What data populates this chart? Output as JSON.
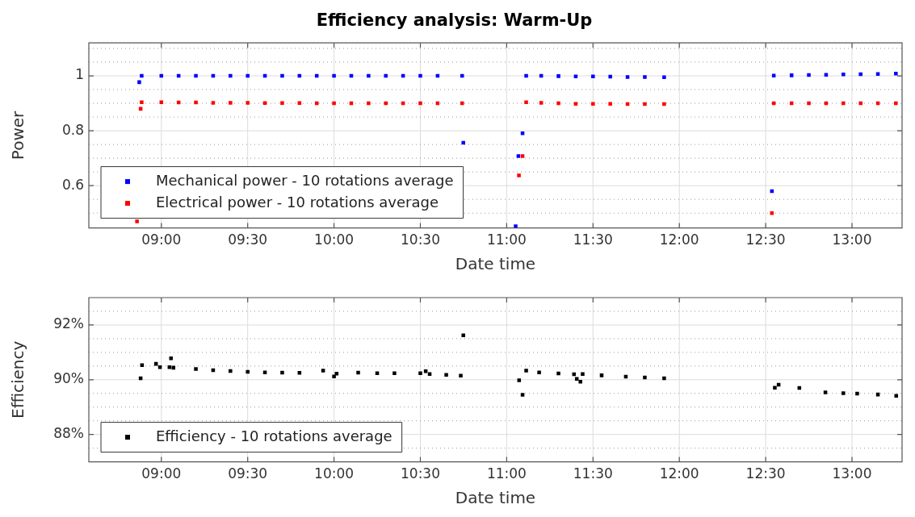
{
  "chart_data": [
    {
      "type": "scatter",
      "title": "Efficiency analysis: Warm-Up",
      "xlabel": "Date time",
      "ylabel": "Power",
      "marker": "square",
      "grid": true,
      "legend": "bottom left",
      "xlim": [
        8.58,
        13.29
      ],
      "xticks": [
        {
          "value": 9,
          "label": "09:00"
        },
        {
          "value": 9.5,
          "label": "09:30"
        },
        {
          "value": 10,
          "label": "10:00"
        },
        {
          "value": 10.5,
          "label": "10:30"
        },
        {
          "value": 11,
          "label": "11:00"
        },
        {
          "value": 11.5,
          "label": "11:30"
        },
        {
          "value": 12,
          "label": "12:00"
        },
        {
          "value": 12.5,
          "label": "12:30"
        },
        {
          "value": 13,
          "label": "13:00"
        }
      ],
      "ylim": [
        0.446,
        1.12
      ],
      "yticks": [
        {
          "value": 0.5,
          "label": null
        },
        {
          "value": 0.55,
          "label": null
        },
        0.6,
        {
          "value": 0.65,
          "label": null
        },
        {
          "value": 0.7,
          "label": null
        },
        {
          "value": 0.75,
          "label": null
        },
        0.8,
        {
          "value": 0.85,
          "label": null
        },
        {
          "value": 0.9,
          "label": null
        },
        {
          "value": 0.95,
          "label": null
        },
        1,
        {
          "value": 1.05,
          "label": null
        },
        {
          "value": 1.1,
          "label": null
        }
      ],
      "series": [
        {
          "name": "Mechanical power - 10 rotations average",
          "color": "#0000ff",
          "x": [
            8.872,
            8.886,
            9.0,
            9.1,
            9.2,
            9.3,
            9.4,
            9.5,
            9.6,
            9.7,
            9.8,
            9.9,
            10.0,
            10.1,
            10.2,
            10.3,
            10.4,
            10.5,
            10.6,
            10.742,
            10.749,
            11.052,
            11.068,
            11.092,
            11.113,
            11.2,
            11.3,
            11.4,
            11.5,
            11.6,
            11.7,
            11.8,
            11.912,
            12.536,
            12.547,
            12.65,
            12.75,
            12.85,
            12.95,
            13.05,
            13.15,
            13.254
          ],
          "values": [
            0.977,
            1.0,
            1.0,
            1.0,
            1.0,
            1.0,
            1.0,
            1.0,
            1.0,
            1.0,
            1.0,
            1.0,
            1.0,
            1.0,
            1.0,
            1.0,
            1.0,
            1.0,
            1.0,
            1.0,
            0.756,
            0.452,
            0.708,
            0.791,
            1.0,
            1.0,
            0.999,
            0.998,
            0.998,
            0.997,
            0.996,
            0.996,
            0.995,
            0.58,
            1.001,
            1.002,
            1.003,
            1.004,
            1.005,
            1.006,
            1.007,
            1.008
          ]
        },
        {
          "name": "Electrical power - 10 rotations average",
          "color": "#ff0000",
          "x": [
            8.859,
            8.88,
            8.886,
            9.0,
            9.1,
            9.2,
            9.3,
            9.4,
            9.5,
            9.6,
            9.7,
            9.8,
            9.9,
            10.0,
            10.1,
            10.2,
            10.3,
            10.4,
            10.5,
            10.6,
            10.742,
            11.071,
            11.092,
            11.113,
            11.2,
            11.3,
            11.4,
            11.5,
            11.6,
            11.7,
            11.8,
            11.912,
            12.536,
            12.547,
            12.65,
            12.75,
            12.85,
            12.95,
            13.05,
            13.15,
            13.254
          ],
          "values": [
            0.47,
            0.88,
            0.904,
            0.904,
            0.903,
            0.903,
            0.902,
            0.902,
            0.902,
            0.901,
            0.901,
            0.901,
            0.9,
            0.9,
            0.9,
            0.9,
            0.9,
            0.9,
            0.9,
            0.9,
            0.9,
            0.637,
            0.708,
            0.904,
            0.902,
            0.9,
            0.898,
            0.898,
            0.898,
            0.897,
            0.897,
            0.897,
            0.5,
            0.9,
            0.9,
            0.9,
            0.9,
            0.9,
            0.9,
            0.9,
            0.9
          ]
        }
      ]
    },
    {
      "type": "scatter",
      "xlabel": "Date time",
      "ylabel": "Efficiency",
      "marker": "square",
      "grid": true,
      "legend": "bottom left",
      "xlim": [
        8.58,
        13.29
      ],
      "xticks": [
        {
          "value": 9,
          "label": "09:00"
        },
        {
          "value": 9.5,
          "label": "09:30"
        },
        {
          "value": 10,
          "label": "10:00"
        },
        {
          "value": 10.5,
          "label": "10:30"
        },
        {
          "value": 11,
          "label": "11:00"
        },
        {
          "value": 11.5,
          "label": "11:30"
        },
        {
          "value": 12,
          "label": "12:00"
        },
        {
          "value": 12.5,
          "label": "12:30"
        },
        {
          "value": 13,
          "label": "13:00"
        }
      ],
      "ylim": [
        87,
        93
      ],
      "yticks": [
        {
          "value": 87.5,
          "label": null
        },
        {
          "value": 88,
          "label": "88%"
        },
        {
          "value": 88.5,
          "label": null
        },
        {
          "value": 89,
          "label": null
        },
        {
          "value": 89.5,
          "label": null
        },
        {
          "value": 90,
          "label": "90%"
        },
        {
          "value": 90.5,
          "label": null
        },
        {
          "value": 91,
          "label": null
        },
        {
          "value": 91.5,
          "label": null
        },
        {
          "value": 92,
          "label": "92%"
        },
        {
          "value": 92.5,
          "label": null
        }
      ],
      "series": [
        {
          "name": "Efficiency - 10 rotations average",
          "color": "#000000",
          "x": [
            8.88,
            8.888,
            8.969,
            8.992,
            9.047,
            9.056,
            9.07,
            9.2,
            9.3,
            9.4,
            9.5,
            9.6,
            9.7,
            9.8,
            9.937,
            10.0,
            10.015,
            10.14,
            10.25,
            10.35,
            10.5,
            10.531,
            10.554,
            10.65,
            10.734,
            10.749,
            11.072,
            11.092,
            11.113,
            11.188,
            11.3,
            11.39,
            11.406,
            11.427,
            11.44,
            11.55,
            11.69,
            11.8,
            11.912,
            12.553,
            12.575,
            12.695,
            12.846,
            12.95,
            13.03,
            13.15,
            13.256
          ],
          "values": [
            90.05,
            90.53,
            90.58,
            90.46,
            90.46,
            90.78,
            90.44,
            90.39,
            90.35,
            90.32,
            90.29,
            90.27,
            90.26,
            90.25,
            90.33,
            90.12,
            90.22,
            90.26,
            90.24,
            90.24,
            90.24,
            90.31,
            90.21,
            90.18,
            90.15,
            91.62,
            89.98,
            89.45,
            90.33,
            90.27,
            90.23,
            90.2,
            90.03,
            89.93,
            90.21,
            90.16,
            90.11,
            90.08,
            90.05,
            89.71,
            89.82,
            89.7,
            89.54,
            89.51,
            89.49,
            89.46,
            89.41
          ]
        }
      ]
    }
  ]
}
